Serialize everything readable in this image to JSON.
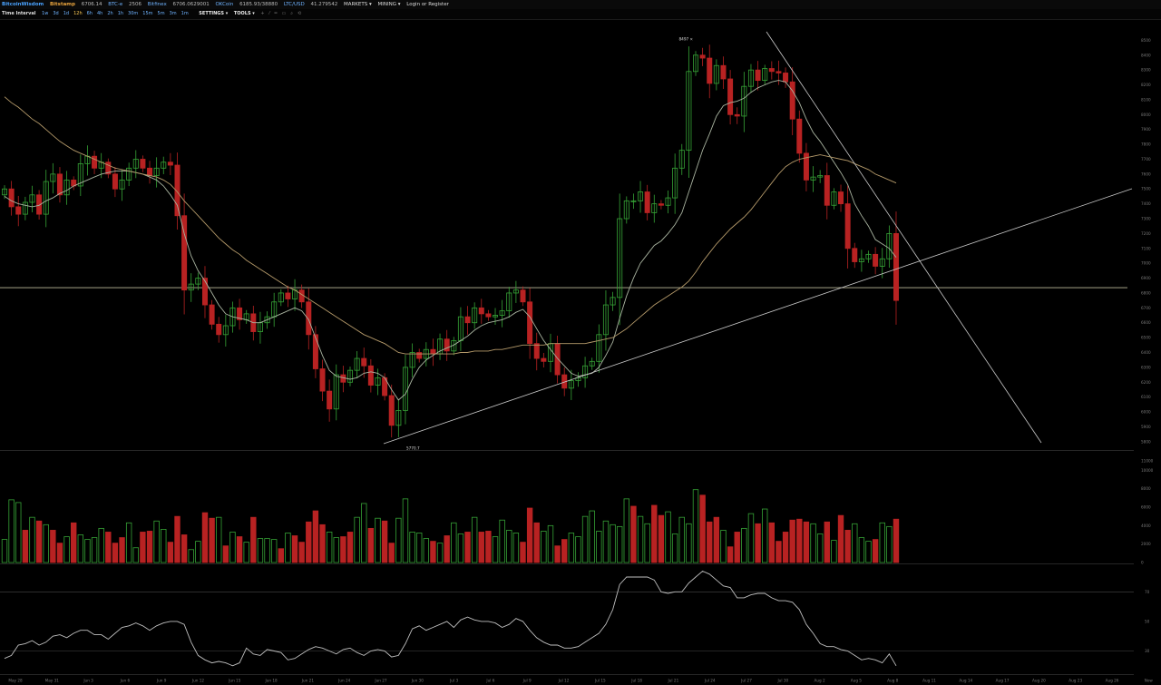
{
  "header": {
    "brand": "BitcoinWisdom",
    "exchange": "Bitstamp",
    "exchange_price": "6706.14",
    "pairs": [
      {
        "label": "BTC-e",
        "value": "2506"
      },
      {
        "label": "Bitfinex",
        "value": "6706.0629001"
      },
      {
        "label": "OKCoin",
        "value": "6185.93/38880"
      },
      {
        "label": "LTC/USD",
        "value": "41.279542"
      }
    ],
    "menus": [
      "MARKETS ▾",
      "MINING ▾",
      "Login or Register"
    ]
  },
  "toolbar": {
    "time_interval_label": "Time Interval",
    "intervals": [
      "1w",
      "3d",
      "1d",
      "12h",
      "6h",
      "4h",
      "2h",
      "1h",
      "30m",
      "15m",
      "5m",
      "3m",
      "1m"
    ],
    "selected_interval": "12h",
    "settings_label": "SETTINGS ▾",
    "tools_label": "TOOLS ▾",
    "tool_icons": [
      "+",
      "⁄",
      "═",
      "▭",
      "⌕",
      "⟲"
    ]
  },
  "colors": {
    "up": "#36a336",
    "down": "#b82222",
    "ema_fast": "#a9b4a0",
    "ema_slow": "#b59a6a",
    "line": "#9a9a9a"
  },
  "chart_data": {
    "type": "candlestick",
    "x_tick_labels": [
      "May 28",
      "May 31",
      "Jun 3",
      "Jun 6",
      "Jun 9",
      "Jun 12",
      "Jun 15",
      "Jun 18",
      "Jun 21",
      "Jun 24",
      "Jun 27",
      "Jun 30",
      "Jul 3",
      "Jul 6",
      "Jul 9",
      "Jul 12",
      "Jul 15",
      "Jul 18",
      "Jul 21",
      "Jul 24",
      "Jul 27",
      "Jul 30",
      "Aug 2",
      "Aug 5",
      "Aug 8",
      "Aug 11",
      "Aug 14",
      "Aug 17",
      "Aug 20",
      "Aug 23",
      "Aug 26",
      "Now"
    ],
    "price_axis": {
      "range": [
        5750,
        8600
      ],
      "ticks": [
        5800,
        5900,
        6000,
        6100,
        6200,
        6300,
        6400,
        6500,
        6600,
        6700,
        6800,
        6900,
        7000,
        7100,
        7200,
        7300,
        7400,
        7500,
        7600,
        7700,
        7800,
        7900,
        8000,
        8100,
        8200,
        8300,
        8400,
        8500
      ]
    },
    "annotations": [
      {
        "text": "8497 ×",
        "price": 8497
      },
      {
        "text": "5770.7",
        "price": 5770.7
      }
    ],
    "horizontal_line": 6836,
    "series": {
      "close": [
        7500,
        7380,
        7330,
        7410,
        7460,
        7330,
        7550,
        7600,
        7460,
        7560,
        7520,
        7670,
        7720,
        7640,
        7680,
        7600,
        7500,
        7560,
        7640,
        7700,
        7640,
        7590,
        7640,
        7680,
        7660,
        7320,
        6820,
        6860,
        6900,
        6720,
        6590,
        6520,
        6580,
        6700,
        6620,
        6660,
        6540,
        6600,
        6640,
        6740,
        6800,
        6760,
        6820,
        6740,
        6520,
        6290,
        6140,
        6020,
        6250,
        6200,
        6280,
        6360,
        6310,
        6180,
        6230,
        6110,
        5910,
        6010,
        6300,
        6400,
        6360,
        6420,
        6390,
        6490,
        6410,
        6480,
        6640,
        6600,
        6700,
        6660,
        6640,
        6650,
        6680,
        6800,
        6820,
        6740,
        6460,
        6360,
        6340,
        6460,
        6250,
        6160,
        6210,
        6230,
        6310,
        6340,
        6520,
        6720,
        6770,
        7300,
        7420,
        7420,
        7480,
        7340,
        7400,
        7390,
        7440,
        7640,
        7760,
        8290,
        8400,
        8380,
        8210,
        8330,
        8240,
        8000,
        7990,
        8190,
        8300,
        8230,
        8310,
        8290,
        8280,
        8220,
        7970,
        7740,
        7560,
        7580,
        7590,
        7390,
        7480,
        7400,
        7100,
        7010,
        7030,
        7060,
        6980,
        7030,
        7200,
        6750
      ],
      "ema_fast": [
        7450,
        7420,
        7400,
        7390,
        7380,
        7390,
        7420,
        7440,
        7470,
        7490,
        7520,
        7540,
        7560,
        7580,
        7600,
        7610,
        7620,
        7620,
        7620,
        7610,
        7600,
        7580,
        7560,
        7520,
        7460,
        7390,
        7200,
        7050,
        6950,
        6880,
        6800,
        6720,
        6660,
        6640,
        6630,
        6620,
        6600,
        6600,
        6620,
        6640,
        6660,
        6680,
        6700,
        6680,
        6620,
        6500,
        6380,
        6280,
        6240,
        6230,
        6220,
        6230,
        6260,
        6270,
        6260,
        6230,
        6150,
        6080,
        6120,
        6220,
        6300,
        6350,
        6380,
        6410,
        6430,
        6450,
        6480,
        6510,
        6550,
        6580,
        6600,
        6610,
        6620,
        6640,
        6670,
        6690,
        6640,
        6560,
        6480,
        6420,
        6360,
        6310,
        6260,
        6240,
        6250,
        6260,
        6300,
        6380,
        6470,
        6630,
        6780,
        6900,
        7000,
        7060,
        7120,
        7150,
        7200,
        7260,
        7340,
        7480,
        7620,
        7760,
        7870,
        7990,
        8060,
        8080,
        8090,
        8110,
        8150,
        8180,
        8200,
        8220,
        8230,
        8220,
        8160,
        8080,
        7970,
        7880,
        7820,
        7750,
        7680,
        7610,
        7530,
        7400,
        7320,
        7250,
        7160,
        7130,
        7100,
        7040
      ],
      "ema_slow": [
        8120,
        8080,
        8050,
        8010,
        7970,
        7940,
        7900,
        7860,
        7820,
        7790,
        7760,
        7740,
        7720,
        7700,
        7680,
        7660,
        7640,
        7630,
        7620,
        7610,
        7600,
        7590,
        7580,
        7560,
        7530,
        7480,
        7420,
        7370,
        7320,
        7270,
        7220,
        7170,
        7130,
        7090,
        7060,
        7020,
        6990,
        6960,
        6930,
        6900,
        6870,
        6840,
        6820,
        6790,
        6760,
        6730,
        6700,
        6670,
        6640,
        6610,
        6580,
        6550,
        6520,
        6500,
        6480,
        6460,
        6430,
        6400,
        6390,
        6390,
        6390,
        6390,
        6390,
        6390,
        6390,
        6390,
        6400,
        6400,
        6410,
        6410,
        6410,
        6420,
        6420,
        6430,
        6440,
        6450,
        6450,
        6450,
        6450,
        6460,
        6460,
        6460,
        6460,
        6460,
        6460,
        6470,
        6480,
        6490,
        6500,
        6530,
        6560,
        6600,
        6640,
        6680,
        6720,
        6750,
        6780,
        6810,
        6840,
        6880,
        6940,
        7010,
        7070,
        7130,
        7180,
        7230,
        7270,
        7310,
        7360,
        7420,
        7480,
        7540,
        7600,
        7650,
        7680,
        7700,
        7710,
        7720,
        7730,
        7720,
        7710,
        7700,
        7690,
        7670,
        7650,
        7630,
        7600,
        7580,
        7560,
        7540
      ],
      "volume_color": [
        "up",
        "up",
        "up",
        "down",
        "up",
        "down",
        "up",
        "down",
        "down",
        "up",
        "down",
        "up",
        "up",
        "up",
        "up",
        "down",
        "down",
        "down",
        "up",
        "up",
        "down",
        "down",
        "up",
        "up",
        "down",
        "down",
        "down",
        "up",
        "up",
        "down",
        "down",
        "up",
        "down",
        "up",
        "down",
        "up",
        "down",
        "up",
        "up",
        "up",
        "down",
        "up",
        "down",
        "down",
        "down",
        "down",
        "down",
        "up",
        "up",
        "down",
        "down",
        "up",
        "up",
        "down",
        "up",
        "down",
        "down",
        "up",
        "up",
        "up",
        "up",
        "up",
        "down",
        "up",
        "down",
        "up",
        "up",
        "down",
        "up",
        "down",
        "down",
        "up",
        "up",
        "up",
        "up",
        "down",
        "down",
        "down",
        "up",
        "up",
        "down",
        "down",
        "up",
        "up",
        "up",
        "up",
        "up",
        "up",
        "up",
        "up",
        "up",
        "down",
        "up",
        "up",
        "down",
        "down",
        "up",
        "up",
        "up",
        "up",
        "up",
        "down",
        "down",
        "down",
        "up",
        "down",
        "down",
        "up",
        "up",
        "down",
        "up",
        "down",
        "down",
        "down",
        "down",
        "down",
        "down",
        "up",
        "up",
        "down",
        "up",
        "down",
        "down",
        "up",
        "up",
        "up",
        "down",
        "up",
        "up",
        "down"
      ],
      "volume": [
        2500,
        6800,
        6500,
        3500,
        4900,
        4500,
        4100,
        3500,
        2100,
        2800,
        4300,
        3000,
        2500,
        2700,
        3700,
        3300,
        2100,
        2700,
        4300,
        1600,
        3300,
        3400,
        4500,
        3600,
        2200,
        5000,
        3000,
        1400,
        2300,
        5400,
        4800,
        4900,
        1800,
        3300,
        2800,
        2200,
        4900,
        2600,
        2600,
        2500,
        1500,
        3200,
        2900,
        2200,
        4400,
        5600,
        4100,
        3300,
        2700,
        2800,
        3300,
        4900,
        6400,
        3700,
        4800,
        4500,
        2100,
        4800,
        6900,
        3300,
        3200,
        2600,
        2300,
        2100,
        2900,
        4300,
        3100,
        3300,
        4900,
        3300,
        3400,
        2800,
        4600,
        3500,
        3200,
        2200,
        5900,
        4300,
        3400,
        4000,
        1800,
        2500,
        3200,
        2800,
        5000,
        5600,
        3400,
        4500,
        4100,
        3900,
        6900,
        6100,
        5000,
        4200,
        6200,
        5100,
        5500,
        3100,
        4900,
        4200,
        7900,
        7300,
        4400,
        4900,
        3500,
        1700,
        3300,
        3700,
        5300,
        4200,
        5800,
        4300,
        2300,
        3300,
        4600,
        4700,
        4400,
        4200,
        3100,
        4400,
        2400,
        5100,
        3500,
        4200,
        2700,
        2300,
        2500,
        4300,
        3900,
        4700
      ],
      "rsi": [
        25,
        27,
        34,
        35,
        37,
        34,
        36,
        40,
        41,
        39,
        42,
        44,
        44,
        41,
        41,
        38,
        42,
        46,
        47,
        49,
        47,
        44,
        47,
        49,
        50,
        50,
        48,
        36,
        27,
        24,
        22,
        23,
        22,
        20,
        22,
        32,
        28,
        27,
        31,
        30,
        29,
        24,
        25,
        28,
        31,
        33,
        32,
        30,
        28,
        31,
        32,
        29,
        27,
        30,
        31,
        30,
        26,
        27,
        35,
        45,
        47,
        44,
        46,
        48,
        50,
        46,
        51,
        53,
        51,
        50,
        50,
        49,
        46,
        48,
        52,
        50,
        44,
        39,
        36,
        34,
        34,
        32,
        32,
        33,
        36,
        39,
        42,
        48,
        58,
        75,
        80,
        80,
        80,
        80,
        78,
        70,
        69,
        70,
        70,
        76,
        80,
        84,
        82,
        78,
        74,
        73,
        66,
        66,
        68,
        69,
        69,
        66,
        64,
        64,
        63,
        58,
        48,
        42,
        35,
        33,
        33,
        31,
        30,
        27,
        24,
        25,
        24,
        22,
        28,
        20
      ],
      "volume_axis_ticks": [
        0,
        2000,
        4000,
        6000,
        8000,
        10000,
        11000
      ],
      "rsi_axis_ticks": [
        30,
        50,
        70
      ]
    }
  }
}
